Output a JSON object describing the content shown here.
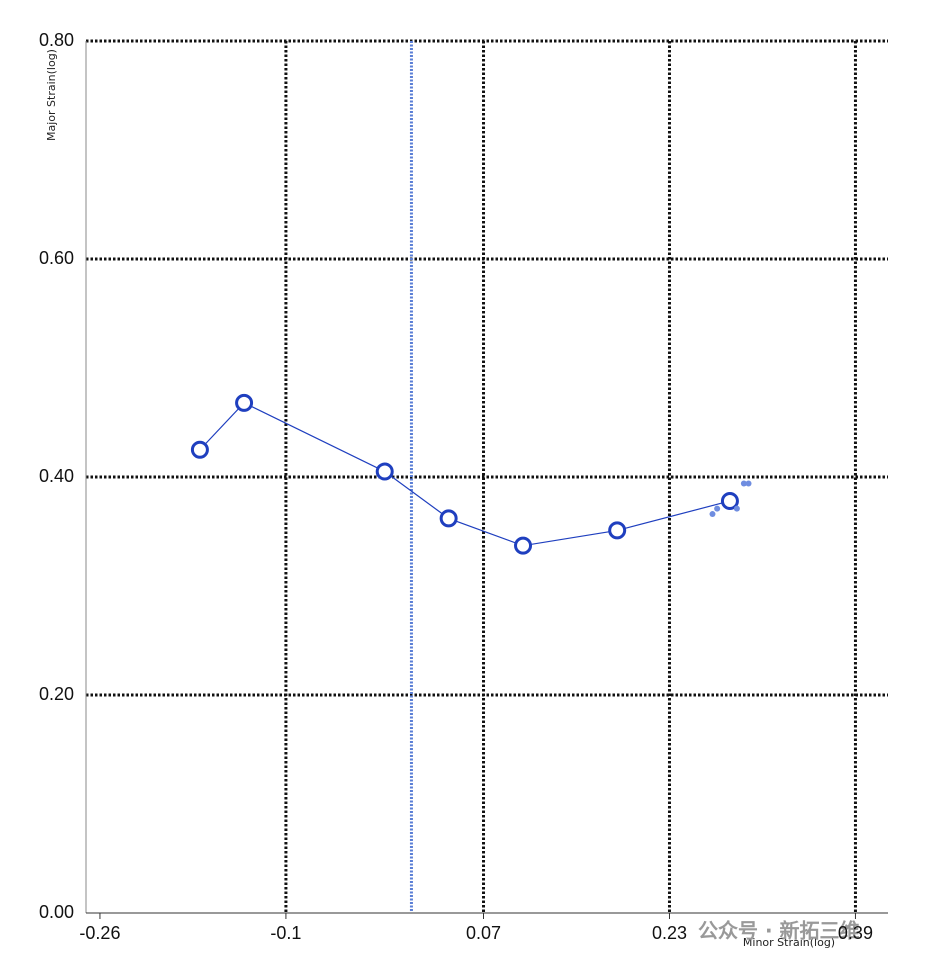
{
  "chart_data": {
    "type": "line",
    "x_label": "Minor Strain(log)",
    "y_label": "Major Strain(log)",
    "xlim": [
      -0.272,
      0.418
    ],
    "ylim": [
      0,
      0.8
    ],
    "xticks": [
      -0.26,
      -0.1,
      0.07,
      0.23,
      0.39
    ],
    "yticks": [
      {
        "value": 0,
        "label": "0.00"
      },
      {
        "value": 0.2,
        "label": "0.20"
      },
      {
        "value": 0.4,
        "label": "0.40"
      },
      {
        "value": 0.6,
        "label": "0.60"
      },
      {
        "value": 0.8,
        "label": "0.80"
      }
    ],
    "grid": true,
    "grid_color": "#111",
    "reference_line": {
      "x": 0.008,
      "color": "#5b7fd6"
    },
    "series": [
      {
        "color": "#1f3fbf",
        "marker": "ring",
        "x": [
          -0.174,
          -0.136,
          -0.015,
          0.04,
          0.104,
          0.185,
          0.282
        ],
        "values": [
          0.425,
          0.468,
          0.405,
          0.362,
          0.337,
          0.351,
          0.378
        ]
      },
      {
        "color": "#6f8de0",
        "marker": "dot",
        "x": [
          0.267,
          0.271,
          0.288,
          0.294,
          0.298
        ],
        "values": [
          0.366,
          0.371,
          0.371,
          0.394,
          0.394
        ]
      }
    ],
    "watermark": "公众号 · 新拓三维"
  }
}
